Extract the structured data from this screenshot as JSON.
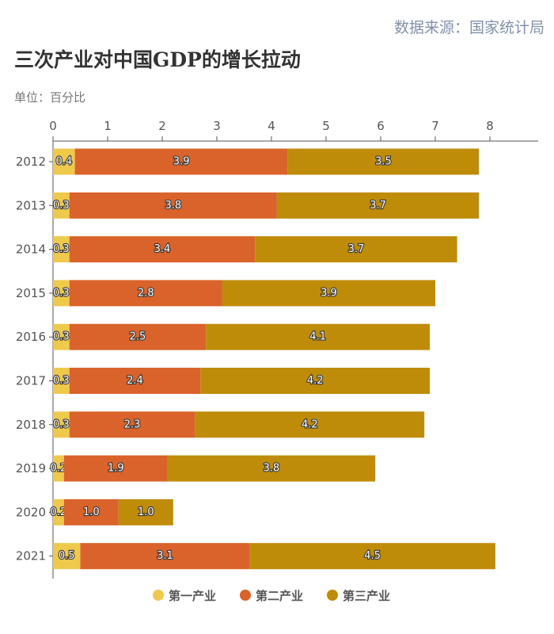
{
  "source": "数据来源：国家统计局",
  "title": "三次产业对中国GDP的增长拉动",
  "unit": "单位：百分比",
  "chart_data": {
    "type": "bar",
    "orientation": "horizontal",
    "stacked": true,
    "title": "三次产业对中国GDP的增长拉动",
    "categories": [
      "2012",
      "2013",
      "2014",
      "2015",
      "2016",
      "2017",
      "2018",
      "2019",
      "2020",
      "2021"
    ],
    "xlim": [
      0,
      8
    ],
    "xticks": [
      0,
      1,
      2,
      3,
      4,
      5,
      6,
      7,
      8
    ],
    "x_axis_position": "top",
    "grid": false,
    "legend": "bottom",
    "series": [
      {
        "name": "第一产业",
        "color": "#EFC94C",
        "values": [
          0.4,
          0.3,
          0.3,
          0.3,
          0.3,
          0.3,
          0.3,
          0.2,
          0.2,
          0.5
        ]
      },
      {
        "name": "第二产业",
        "color": "#D9632B",
        "values": [
          3.9,
          3.8,
          3.4,
          2.8,
          2.5,
          2.4,
          2.3,
          1.9,
          1.0,
          3.1
        ]
      },
      {
        "name": "第三产业",
        "color": "#BF8C0A",
        "values": [
          3.5,
          3.7,
          3.7,
          3.9,
          4.1,
          4.2,
          4.2,
          3.8,
          1.0,
          4.5
        ]
      }
    ]
  }
}
